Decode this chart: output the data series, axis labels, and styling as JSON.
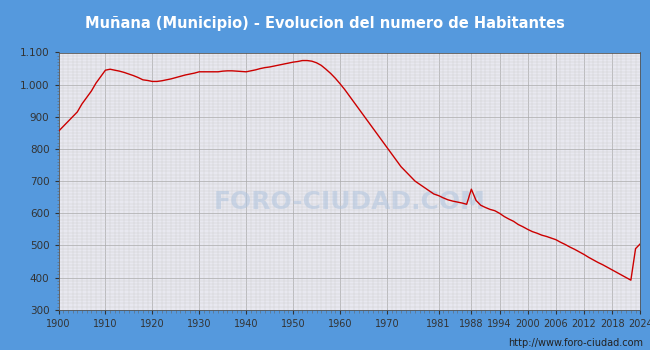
{
  "title": "Muñana (Municipio) - Evolucion del numero de Habitantes",
  "title_bg": "#5599dd",
  "title_color": "white",
  "footer_text": "http://www.foro-ciudad.com",
  "watermark": "FORO-CIUDAD.COM",
  "xlabel_ticks": [
    1900,
    1910,
    1920,
    1930,
    1940,
    1950,
    1960,
    1970,
    1981,
    1988,
    1994,
    2000,
    2006,
    2012,
    2018,
    2024
  ],
  "ylim": [
    300,
    1100
  ],
  "ytick_labels": [
    "300",
    "400",
    "500",
    "600",
    "700",
    "800",
    "900",
    "1.000",
    "1.100"
  ],
  "line_color": "#cc0000",
  "outer_bg": "#5599dd",
  "plot_bg": "#e8e8f0",
  "data": [
    [
      1900,
      855
    ],
    [
      1901,
      870
    ],
    [
      1902,
      885
    ],
    [
      1903,
      900
    ],
    [
      1904,
      915
    ],
    [
      1905,
      940
    ],
    [
      1906,
      960
    ],
    [
      1907,
      980
    ],
    [
      1908,
      1005
    ],
    [
      1909,
      1025
    ],
    [
      1910,
      1045
    ],
    [
      1911,
      1048
    ],
    [
      1912,
      1045
    ],
    [
      1913,
      1042
    ],
    [
      1914,
      1038
    ],
    [
      1915,
      1033
    ],
    [
      1916,
      1028
    ],
    [
      1917,
      1022
    ],
    [
      1918,
      1015
    ],
    [
      1919,
      1013
    ],
    [
      1920,
      1010
    ],
    [
      1921,
      1010
    ],
    [
      1922,
      1012
    ],
    [
      1923,
      1015
    ],
    [
      1924,
      1018
    ],
    [
      1925,
      1022
    ],
    [
      1926,
      1026
    ],
    [
      1927,
      1030
    ],
    [
      1928,
      1033
    ],
    [
      1929,
      1036
    ],
    [
      1930,
      1040
    ],
    [
      1931,
      1040
    ],
    [
      1932,
      1040
    ],
    [
      1933,
      1040
    ],
    [
      1934,
      1040
    ],
    [
      1935,
      1042
    ],
    [
      1936,
      1043
    ],
    [
      1937,
      1043
    ],
    [
      1938,
      1042
    ],
    [
      1939,
      1041
    ],
    [
      1940,
      1040
    ],
    [
      1941,
      1043
    ],
    [
      1942,
      1046
    ],
    [
      1943,
      1050
    ],
    [
      1944,
      1053
    ],
    [
      1945,
      1055
    ],
    [
      1946,
      1058
    ],
    [
      1947,
      1061
    ],
    [
      1948,
      1064
    ],
    [
      1949,
      1067
    ],
    [
      1950,
      1070
    ],
    [
      1951,
      1072
    ],
    [
      1952,
      1075
    ],
    [
      1953,
      1075
    ],
    [
      1954,
      1073
    ],
    [
      1955,
      1068
    ],
    [
      1956,
      1060
    ],
    [
      1957,
      1048
    ],
    [
      1958,
      1035
    ],
    [
      1959,
      1020
    ],
    [
      1960,
      1003
    ],
    [
      1961,
      985
    ],
    [
      1962,
      965
    ],
    [
      1963,
      945
    ],
    [
      1964,
      925
    ],
    [
      1965,
      905
    ],
    [
      1966,
      885
    ],
    [
      1967,
      865
    ],
    [
      1968,
      845
    ],
    [
      1969,
      825
    ],
    [
      1970,
      805
    ],
    [
      1971,
      785
    ],
    [
      1972,
      765
    ],
    [
      1973,
      745
    ],
    [
      1974,
      730
    ],
    [
      1975,
      715
    ],
    [
      1976,
      700
    ],
    [
      1977,
      690
    ],
    [
      1978,
      680
    ],
    [
      1979,
      670
    ],
    [
      1980,
      660
    ],
    [
      1981,
      655
    ],
    [
      1982,
      648
    ],
    [
      1983,
      642
    ],
    [
      1984,
      638
    ],
    [
      1985,
      635
    ],
    [
      1986,
      632
    ],
    [
      1987,
      628
    ],
    [
      1988,
      675
    ],
    [
      1989,
      640
    ],
    [
      1990,
      625
    ],
    [
      1991,
      618
    ],
    [
      1992,
      612
    ],
    [
      1993,
      608
    ],
    [
      1994,
      600
    ],
    [
      1995,
      590
    ],
    [
      1996,
      582
    ],
    [
      1997,
      575
    ],
    [
      1998,
      565
    ],
    [
      1999,
      558
    ],
    [
      2000,
      550
    ],
    [
      2001,
      543
    ],
    [
      2002,
      538
    ],
    [
      2003,
      532
    ],
    [
      2004,
      528
    ],
    [
      2005,
      523
    ],
    [
      2006,
      518
    ],
    [
      2007,
      510
    ],
    [
      2008,
      503
    ],
    [
      2009,
      495
    ],
    [
      2010,
      488
    ],
    [
      2011,
      480
    ],
    [
      2012,
      472
    ],
    [
      2013,
      463
    ],
    [
      2014,
      455
    ],
    [
      2015,
      447
    ],
    [
      2016,
      440
    ],
    [
      2017,
      432
    ],
    [
      2018,
      424
    ],
    [
      2019,
      416
    ],
    [
      2020,
      408
    ],
    [
      2021,
      400
    ],
    [
      2022,
      392
    ],
    [
      2023,
      490
    ],
    [
      2024,
      505
    ]
  ]
}
